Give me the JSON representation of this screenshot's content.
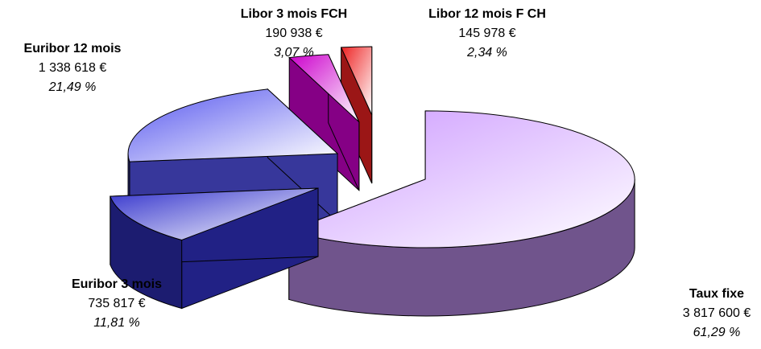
{
  "chart_data": {
    "type": "pie",
    "categories": [
      "Taux fixe",
      "Euribor 3 mois",
      "Euribor 12 mois",
      "Libor 3 mois FCH",
      "Libor 12 mois F CH"
    ],
    "values": [
      3817600,
      735817,
      1338618,
      190938,
      145978
    ],
    "value_labels": [
      "3 817 600 €",
      "735 817 €",
      "1 338 618 €",
      "190 938 €",
      "145 978 €"
    ],
    "percent_values": [
      61.29,
      11.81,
      21.49,
      3.07,
      2.34
    ],
    "percent_labels": [
      "61,29 %",
      "11,81 %",
      "21,49 %",
      "3,07 %",
      "2,34 %"
    ],
    "colors": [
      "#cc99ff",
      "#3333cc",
      "#5555ee",
      "#cc00cc",
      "#ee2222"
    ]
  }
}
